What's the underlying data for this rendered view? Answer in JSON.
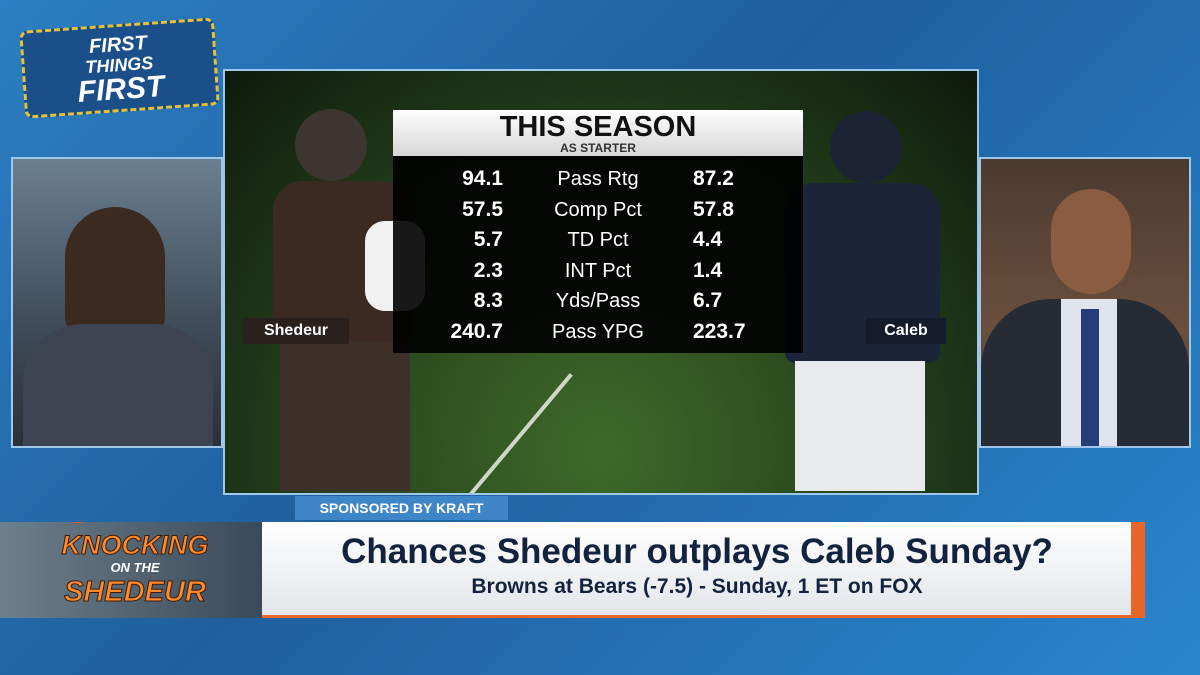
{
  "logo": {
    "lines": [
      "FIRST",
      "THINGS",
      "FIRST"
    ]
  },
  "stats": {
    "title": "THIS SEASON",
    "subtitle": "AS STARTER",
    "rows": [
      [
        "94.1",
        "Pass Rtg",
        "87.2"
      ],
      [
        "57.5",
        "Comp Pct",
        "57.8"
      ],
      [
        "5.7",
        "TD Pct",
        "4.4"
      ],
      [
        "2.3",
        "INT Pct",
        "1.4"
      ],
      [
        "8.3",
        "Yds/Pass",
        "6.7"
      ],
      [
        "240.7",
        "Pass YPG",
        "223.7"
      ]
    ],
    "left_player": "Shedeur",
    "right_player": "Caleb"
  },
  "sponsor": "SPONSORED BY KRAFT",
  "segment": {
    "lines": [
      "KNOCKING",
      "ON THE",
      "SHEDEUR"
    ]
  },
  "lower_third": {
    "headline": "Chances Shedeur outplays Caleb Sunday?",
    "subline": "Browns at Bears (-7.5) - Sunday, 1 ET on FOX"
  }
}
